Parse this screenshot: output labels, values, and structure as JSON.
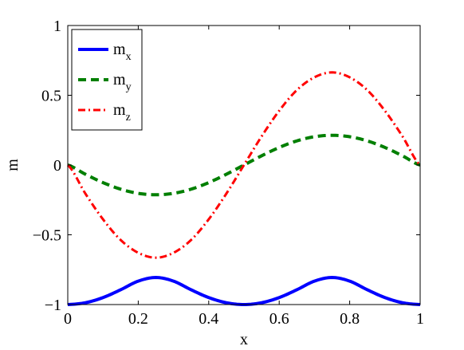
{
  "chart_data": {
    "type": "line",
    "title": "",
    "xlabel": "x",
    "ylabel": "m",
    "xlim": [
      0,
      1
    ],
    "ylim": [
      -1,
      1
    ],
    "xticks": [
      0,
      0.2,
      0.4,
      0.6,
      0.8,
      1
    ],
    "xtick_labels": [
      "0",
      "0.2",
      "0.4",
      "0.6",
      "0.8",
      "1"
    ],
    "yticks": [
      -1,
      -0.5,
      0,
      0.5,
      1
    ],
    "ytick_labels": [
      "−1",
      "−0.5",
      "0",
      "0.5",
      "1"
    ],
    "grid": false,
    "legend": {
      "position": "top-left",
      "entries": [
        {
          "base": "m",
          "sub": "x"
        },
        {
          "base": "m",
          "sub": "y"
        },
        {
          "base": "m",
          "sub": "z"
        }
      ]
    },
    "series": [
      {
        "name": "m_x",
        "color": "#0000ff",
        "style": "solid",
        "x": [
          0,
          0.05,
          0.1,
          0.15,
          0.2,
          0.25,
          0.3,
          0.35,
          0.4,
          0.45,
          0.5,
          0.55,
          0.6,
          0.65,
          0.7,
          0.75,
          0.8,
          0.85,
          0.9,
          0.95,
          1
        ],
        "y": [
          -1.0,
          -0.987,
          -0.95,
          -0.894,
          -0.832,
          -0.806,
          -0.832,
          -0.894,
          -0.95,
          -0.987,
          -1.0,
          -0.987,
          -0.95,
          -0.894,
          -0.832,
          -0.806,
          -0.832,
          -0.894,
          -0.95,
          -0.987,
          -1.0
        ]
      },
      {
        "name": "m_y",
        "color": "#007f00",
        "style": "dashed",
        "x": [
          0,
          0.05,
          0.1,
          0.15,
          0.2,
          0.25,
          0.3,
          0.35,
          0.4,
          0.45,
          0.5,
          0.55,
          0.6,
          0.65,
          0.7,
          0.75,
          0.8,
          0.85,
          0.9,
          0.95,
          1
        ],
        "y": [
          0.0,
          -0.066,
          -0.126,
          -0.173,
          -0.203,
          -0.213,
          -0.203,
          -0.173,
          -0.126,
          -0.066,
          0.0,
          0.066,
          0.126,
          0.173,
          0.203,
          0.213,
          0.203,
          0.173,
          0.126,
          0.066,
          0.0
        ]
      },
      {
        "name": "m_z",
        "color": "#ff0000",
        "style": "dashdot",
        "x": [
          0,
          0.05,
          0.1,
          0.15,
          0.2,
          0.25,
          0.3,
          0.35,
          0.4,
          0.45,
          0.5,
          0.55,
          0.6,
          0.65,
          0.7,
          0.75,
          0.8,
          0.85,
          0.9,
          0.95,
          1
        ],
        "y": [
          0.0,
          -0.205,
          -0.389,
          -0.537,
          -0.629,
          -0.664,
          -0.629,
          -0.537,
          -0.389,
          -0.205,
          0.0,
          0.205,
          0.389,
          0.537,
          0.629,
          0.664,
          0.629,
          0.537,
          0.389,
          0.205,
          0.0
        ]
      }
    ]
  }
}
